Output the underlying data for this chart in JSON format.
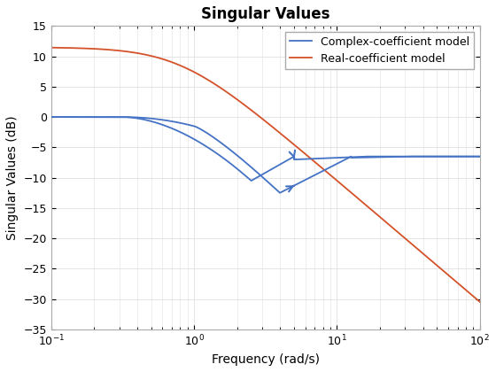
{
  "title": "Singular Values",
  "xlabel": "Frequency (rad/s)",
  "ylabel": "Singular Values (dB)",
  "xlim_log": [
    -1,
    2
  ],
  "ylim": [
    -35,
    15
  ],
  "yticks": [
    -35,
    -30,
    -25,
    -20,
    -15,
    -10,
    -5,
    0,
    5,
    10,
    15
  ],
  "legend_labels": [
    "Complex-coefficient model",
    "Real-coefficient model"
  ],
  "blue_color": "#4472C4",
  "orange_color": "#D4522A",
  "line_width": 1.3,
  "bg_color": "#FFFFFF",
  "grid_color": "#E0E0E0",
  "title_fontsize": 12,
  "label_fontsize": 10,
  "legend_fontsize": 9,
  "real_sv_A_db": 11.5,
  "real_sv_wc": 1.2,
  "real_sv_slope": 20
}
